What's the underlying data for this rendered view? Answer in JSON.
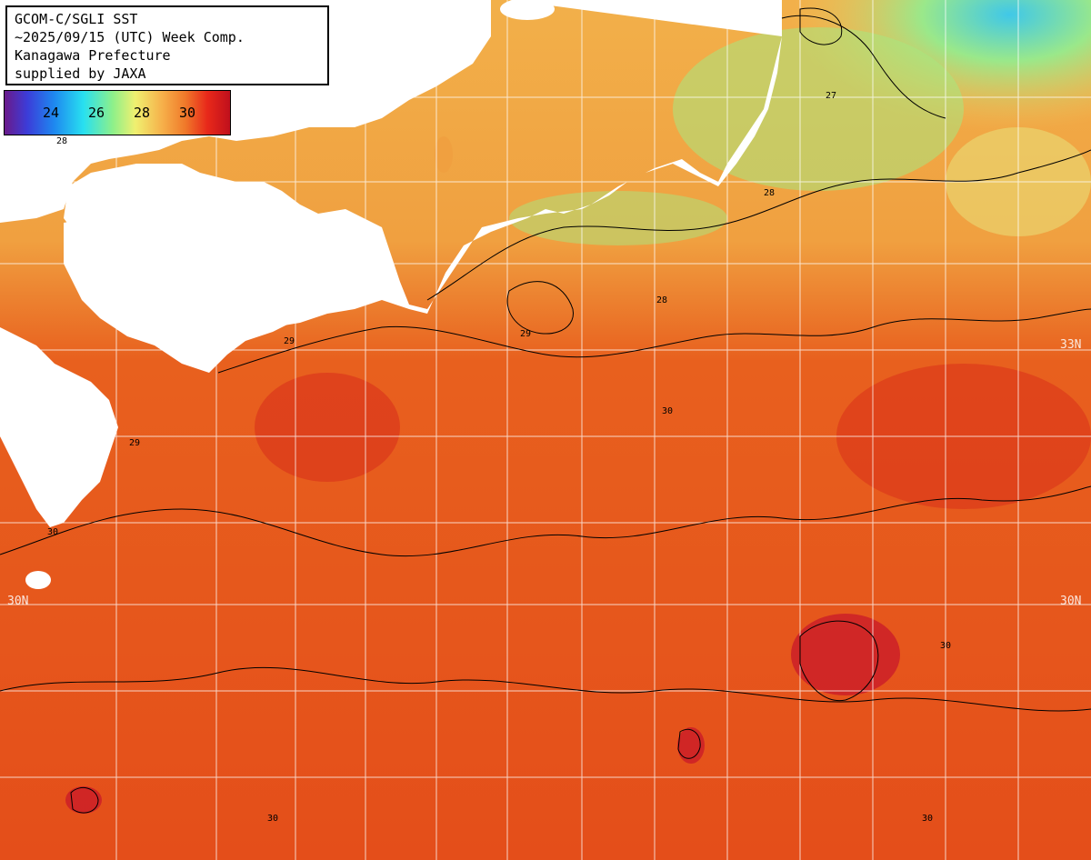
{
  "title": {
    "line1": "GCOM-C/SGLI SST",
    "line2": "~2025/09/15 (UTC) Week Comp.",
    "line3": "Kanagawa Prefecture",
    "line4": "supplied by JAXA"
  },
  "legend": {
    "ticks": [
      "24",
      "26",
      "28",
      "30"
    ],
    "colors": {
      "cold": "#6a1a8a",
      "cool": "#28e0f0",
      "mild": "#f0f070",
      "warm": "#f07a2a",
      "hot": "#c0101c"
    }
  },
  "map": {
    "lat_labels": {
      "left_30n": "30N",
      "right_30n": "30N",
      "right_33n": "33N"
    },
    "contour_labels": [
      "28",
      "28",
      "29",
      "29",
      "30",
      "30",
      "30",
      "27",
      "28",
      "29",
      "30",
      "30"
    ],
    "colors": {
      "land": "#ffffff",
      "sea_warm": "#e8541d",
      "sea_hot": "#d8301a",
      "sea_mild": "#f0a848",
      "sea_cool": "#a8e880",
      "gridline": "#ffffff",
      "contour": "#000000"
    }
  }
}
